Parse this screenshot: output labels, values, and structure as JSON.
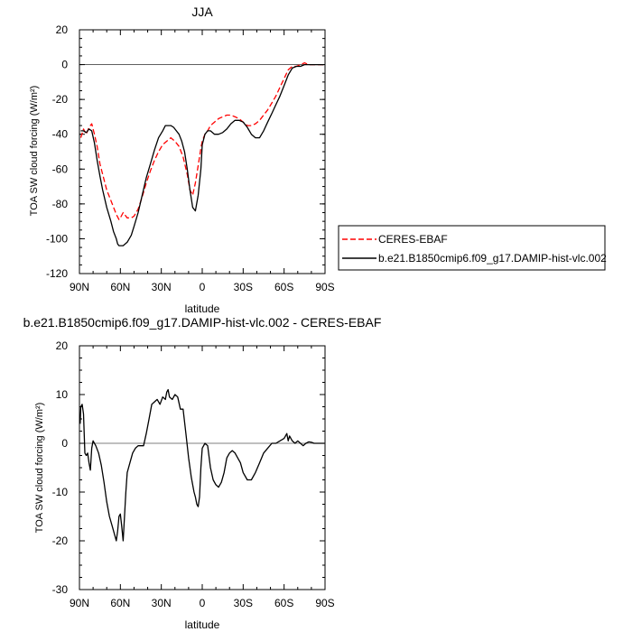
{
  "chart_data": [
    {
      "type": "line",
      "title": "JJA",
      "xlabel": "latitude",
      "ylabel": "TOA SW cloud forcing (W/m²)",
      "xlim": [
        90,
        -90
      ],
      "ylim": [
        -120,
        20
      ],
      "xticks": [
        90,
        60,
        30,
        0,
        -30,
        -60,
        -90
      ],
      "xtick_labels": [
        "90N",
        "60N",
        "30N",
        "0",
        "30S",
        "60S",
        "90S"
      ],
      "yticks": [
        20,
        0,
        -20,
        -40,
        -60,
        -80,
        -100,
        -120
      ],
      "ytick_labels": [
        "20",
        "0",
        "-20",
        "-40",
        "-60",
        "-80",
        "-100",
        "-120"
      ],
      "legend_position": "outside-right",
      "series": [
        {
          "name": "CERES-EBAF",
          "color": "#ff0000",
          "dash": "dashed",
          "x": [
            89,
            87,
            85,
            83,
            81,
            79,
            77,
            75,
            73,
            70,
            67,
            65,
            63,
            61,
            60,
            58,
            55,
            52,
            50,
            47,
            44,
            41,
            38,
            35,
            32,
            29,
            26,
            23,
            20,
            17,
            14,
            11,
            9,
            7,
            5,
            3,
            1,
            0,
            -2,
            -4,
            -6,
            -9,
            -12,
            -15,
            -18,
            -21,
            -24,
            -27,
            -30,
            -33,
            -36,
            -39,
            -42,
            -45,
            -48,
            -51,
            -54,
            -57,
            -60,
            -63,
            -66,
            -69,
            -72,
            -75,
            -78,
            -81,
            -84,
            -87,
            -89
          ],
          "y": [
            -42,
            -37,
            -40,
            -36,
            -34,
            -40,
            -47,
            -57,
            -63,
            -72,
            -78,
            -82,
            -86,
            -89,
            -88,
            -85,
            -88,
            -88,
            -87,
            -83,
            -76,
            -68,
            -61,
            -55,
            -50,
            -46,
            -44,
            -42,
            -44,
            -47,
            -53,
            -63,
            -72,
            -75,
            -68,
            -58,
            -48,
            -44,
            -40,
            -38,
            -35,
            -33,
            -31,
            -30,
            -29,
            -29,
            -30,
            -31,
            -33,
            -35,
            -35,
            -34,
            -32,
            -29,
            -26,
            -22,
            -18,
            -13,
            -8,
            -3,
            -1,
            -1,
            0,
            1,
            0,
            0,
            0,
            0,
            0
          ]
        },
        {
          "name": "b.e21.B1850cmip6.f09_g17.DAMIP-hist-vlc.002",
          "color": "#000000",
          "dash": "solid",
          "x": [
            89,
            87,
            85,
            83,
            81,
            79,
            77,
            75,
            73,
            70,
            67,
            65,
            63,
            62,
            61,
            60,
            58,
            55,
            52,
            50,
            47,
            44,
            41,
            38,
            35,
            32,
            29,
            27,
            25,
            23,
            21,
            19,
            17,
            15,
            13,
            11,
            9,
            7,
            5,
            3,
            1,
            0,
            -2,
            -4,
            -6,
            -9,
            -12,
            -15,
            -18,
            -21,
            -24,
            -27,
            -30,
            -33,
            -36,
            -39,
            -42,
            -45,
            -48,
            -51,
            -54,
            -57,
            -60,
            -63,
            -66,
            -69,
            -72,
            -75,
            -78,
            -81,
            -84,
            -87,
            -89
          ],
          "y": [
            -38,
            -38,
            -39,
            -37,
            -38,
            -45,
            -55,
            -64,
            -72,
            -82,
            -90,
            -96,
            -100,
            -103,
            -104,
            -104,
            -104,
            -102,
            -98,
            -93,
            -85,
            -75,
            -65,
            -57,
            -49,
            -42,
            -38,
            -35,
            -35,
            -35,
            -36,
            -38,
            -40,
            -44,
            -50,
            -60,
            -72,
            -82,
            -84,
            -75,
            -60,
            -46,
            -40,
            -38,
            -38,
            -40,
            -40,
            -39,
            -37,
            -34,
            -32,
            -32,
            -33,
            -36,
            -40,
            -42,
            -42,
            -38,
            -33,
            -28,
            -23,
            -18,
            -12,
            -6,
            -2,
            -1,
            -1,
            0,
            0,
            0,
            0,
            0,
            0
          ]
        }
      ]
    },
    {
      "type": "line",
      "title": "b.e21.B1850cmip6.f09_g17.DAMIP-hist-vlc.002 - CERES-EBAF",
      "xlabel": "latitude",
      "ylabel": "TOA SW cloud forcing (W/m²)",
      "xlim": [
        90,
        -90
      ],
      "ylim": [
        -30,
        20
      ],
      "xticks": [
        90,
        60,
        30,
        0,
        -30,
        -60,
        -90
      ],
      "xtick_labels": [
        "90N",
        "60N",
        "30N",
        "0",
        "30S",
        "60S",
        "90S"
      ],
      "yticks": [
        20,
        10,
        0,
        -10,
        -20,
        -30
      ],
      "ytick_labels": [
        "20",
        "10",
        "0",
        "-10",
        "-20",
        "-30"
      ],
      "series": [
        {
          "name": "",
          "color": "#000000",
          "dash": "solid",
          "x": [
            89.5,
            89,
            88,
            87,
            86,
            85,
            84,
            83,
            82,
            81,
            80,
            78,
            76,
            74,
            72,
            70,
            68,
            66,
            64,
            63,
            62,
            61,
            60,
            59,
            58,
            57,
            56,
            55,
            53,
            51,
            49,
            47,
            45,
            43,
            41,
            39,
            37,
            35,
            33,
            31,
            29,
            27,
            26,
            25,
            24,
            22,
            20,
            18,
            16,
            14,
            12,
            10,
            8,
            6,
            5,
            4,
            3,
            2,
            1,
            0,
            -2,
            -4,
            -6,
            -8,
            -10,
            -12,
            -14,
            -16,
            -18,
            -20,
            -22,
            -24,
            -26,
            -28,
            -30,
            -33,
            -36,
            -39,
            -42,
            -45,
            -48,
            -51,
            -54,
            -57,
            -60,
            -62,
            -63,
            -64,
            -66,
            -68,
            -70,
            -72,
            -74,
            -76,
            -78,
            -80,
            -82,
            -84,
            -86,
            -88,
            -89.5
          ],
          "y": [
            4,
            7.5,
            8,
            6,
            -2,
            -2.5,
            -2,
            -4,
            -5.5,
            -1,
            0.5,
            -0.5,
            -2,
            -4.5,
            -8,
            -12,
            -15,
            -17,
            -19,
            -20,
            -18,
            -15,
            -14.5,
            -17,
            -20,
            -15,
            -10,
            -6,
            -4,
            -2,
            -1,
            -0.5,
            -0.5,
            -0.5,
            2,
            5,
            8,
            8.5,
            9,
            8,
            9.5,
            9,
            10.5,
            11,
            9.5,
            9,
            10,
            9.5,
            7,
            7,
            2,
            -3,
            -7,
            -10,
            -11,
            -12.5,
            -13,
            -11,
            -5,
            -1,
            0,
            -0.5,
            -5,
            -7.5,
            -8.5,
            -9,
            -8,
            -6,
            -3,
            -2,
            -1.5,
            -2,
            -3,
            -4,
            -6,
            -7.5,
            -7.5,
            -6,
            -4,
            -2,
            -1,
            0,
            0,
            0.5,
            1,
            2,
            0.5,
            1.5,
            0.5,
            0,
            0.5,
            0,
            -0.5,
            0,
            0.3,
            0.2,
            0,
            0,
            0,
            0,
            0
          ]
        }
      ]
    }
  ]
}
